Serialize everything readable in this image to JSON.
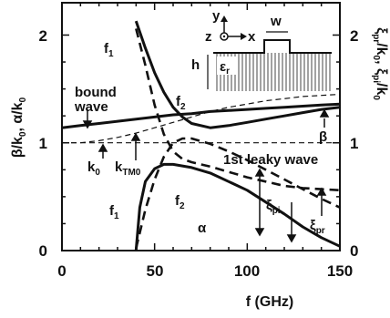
{
  "chart_data": {
    "type": "line",
    "xlabel": "f (GHz)",
    "ylabel_left": "β/k",
    "ylabel_left_2": ", α/k",
    "ylabel_right": "ξ",
    "ylabel_right_2": "/k",
    "ylabel_right_3": ", ξ",
    "ylabel_right_4": "/k",
    "xlim": [
      0,
      150
    ],
    "ylim": [
      0,
      2.3
    ],
    "x_ticks": [
      "0",
      "50",
      "100",
      "150"
    ],
    "y_ticks_left": [
      "0",
      "1",
      "2"
    ],
    "y_ticks_right": [
      "0",
      "1",
      "2"
    ],
    "series": [
      {
        "style": "solid-thick",
        "points": [
          [
            0,
            1.14
          ],
          [
            10,
            1.16
          ],
          [
            20,
            1.18
          ],
          [
            30,
            1.2
          ],
          [
            40,
            1.22
          ],
          [
            50,
            1.24
          ],
          [
            60,
            1.26
          ],
          [
            70,
            1.27
          ],
          [
            80,
            1.29
          ],
          [
            90,
            1.3
          ],
          [
            100,
            1.31
          ],
          [
            110,
            1.32
          ],
          [
            120,
            1.33
          ],
          [
            130,
            1.34
          ],
          [
            140,
            1.35
          ],
          [
            150,
            1.36
          ]
        ]
      },
      {
        "style": "dashed-thin",
        "points": [
          [
            0,
            1.0
          ],
          [
            10,
            1.0
          ],
          [
            20,
            1.02
          ],
          [
            30,
            1.05
          ],
          [
            40,
            1.09
          ],
          [
            50,
            1.14
          ],
          [
            60,
            1.19
          ],
          [
            70,
            1.24
          ],
          [
            80,
            1.29
          ],
          [
            90,
            1.33
          ],
          [
            100,
            1.36
          ],
          [
            110,
            1.39
          ],
          [
            120,
            1.41
          ],
          [
            130,
            1.43
          ],
          [
            140,
            1.44
          ],
          [
            150,
            1.45
          ]
        ]
      },
      {
        "style": "dashed-thin",
        "points": [
          [
            0,
            1.0
          ],
          [
            150,
            1.0
          ]
        ]
      },
      {
        "style": "solid-thick",
        "points": [
          [
            40,
            2.13
          ],
          [
            45,
            1.88
          ],
          [
            50,
            1.65
          ],
          [
            55,
            1.47
          ],
          [
            60,
            1.33
          ],
          [
            65,
            1.24
          ],
          [
            70,
            1.18
          ],
          [
            80,
            1.14
          ],
          [
            90,
            1.16
          ],
          [
            100,
            1.19
          ],
          [
            110,
            1.22
          ],
          [
            120,
            1.25
          ],
          [
            130,
            1.28
          ],
          [
            140,
            1.31
          ],
          [
            150,
            1.33
          ]
        ]
      },
      {
        "style": "dashed-thick",
        "points": [
          [
            40,
            2.06
          ],
          [
            45,
            1.72
          ],
          [
            50,
            1.35
          ],
          [
            55,
            1.08
          ],
          [
            60,
            0.92
          ],
          [
            65,
            0.85
          ],
          [
            70,
            0.82
          ],
          [
            80,
            0.78
          ],
          [
            90,
            0.73
          ],
          [
            100,
            0.68
          ],
          [
            110,
            0.64
          ],
          [
            120,
            0.6
          ],
          [
            130,
            0.58
          ],
          [
            140,
            0.57
          ],
          [
            150,
            0.56
          ]
        ]
      },
      {
        "style": "dashed-thick",
        "points": [
          [
            40,
            0.02
          ],
          [
            45,
            0.38
          ],
          [
            50,
            0.66
          ],
          [
            55,
            0.87
          ],
          [
            60,
            1.0
          ],
          [
            65,
            1.04
          ],
          [
            70,
            1.04
          ],
          [
            80,
            0.99
          ],
          [
            90,
            0.92
          ],
          [
            100,
            0.84
          ],
          [
            110,
            0.75
          ],
          [
            120,
            0.66
          ],
          [
            130,
            0.57
          ],
          [
            140,
            0.48
          ],
          [
            150,
            0.4
          ]
        ]
      },
      {
        "style": "solid-thick",
        "points": [
          [
            40,
            0.0
          ],
          [
            42,
            0.4
          ],
          [
            45,
            0.64
          ],
          [
            50,
            0.76
          ],
          [
            55,
            0.8
          ],
          [
            60,
            0.8
          ],
          [
            70,
            0.77
          ],
          [
            80,
            0.72
          ],
          [
            90,
            0.64
          ],
          [
            100,
            0.56
          ],
          [
            110,
            0.45
          ],
          [
            120,
            0.34
          ],
          [
            130,
            0.22
          ],
          [
            140,
            0.12
          ],
          [
            150,
            0.04
          ]
        ]
      }
    ],
    "annotations": {
      "bound_wave_1": "bound",
      "bound_wave_2": "wave",
      "leaky_wave": "1st leaky wave",
      "f1": "f",
      "f1_sub": "1",
      "f2": "f",
      "f2_sub": "2",
      "k0": "k",
      "k0_sub": "0",
      "ktm0": "k",
      "ktm0_sub": "TM0",
      "beta": "β",
      "alpha": "α",
      "xi_pi": "ξ",
      "xi_pi_sub": "pi",
      "xi_pr": "ξ",
      "xi_pr_sub": "pr",
      "sub_0": "0",
      "sub_pr": "pr",
      "sub_pi": "pi"
    },
    "inset": {
      "y": "y",
      "z": "z",
      "x": "x",
      "w": "w",
      "h": "h",
      "eps": "ε",
      "eps_sub": "r"
    }
  }
}
